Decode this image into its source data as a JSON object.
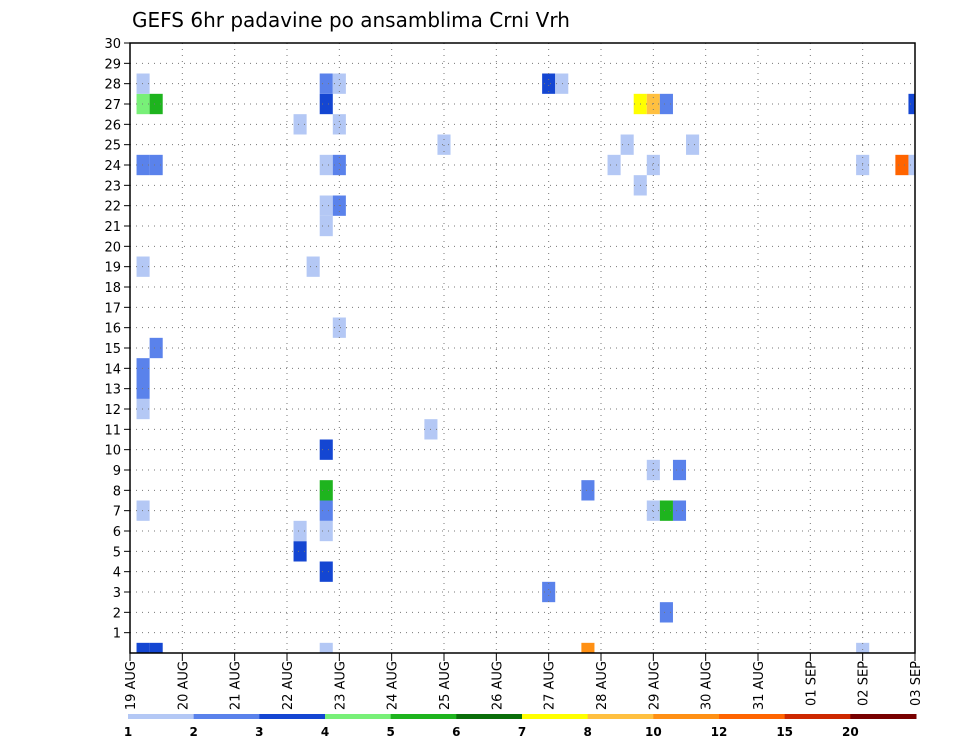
{
  "chart_data": {
    "type": "heatmap",
    "title": "GEFS 6hr padavine po ansamblima Crni Vrh",
    "x_tick_labels": [
      "19 AUG",
      "20 AUG",
      "21 AUG",
      "22 AUG",
      "23 AUG",
      "24 AUG",
      "25 AUG",
      "26 AUG",
      "27 AUG",
      "28 AUG",
      "29 AUG",
      "30 AUG",
      "31 AUG",
      "01 SEP",
      "02 SEP",
      "03 SEP"
    ],
    "y_tick_labels": [
      "1",
      "2",
      "3",
      "4",
      "5",
      "6",
      "7",
      "8",
      "9",
      "10",
      "11",
      "12",
      "13",
      "14",
      "15",
      "16",
      "17",
      "18",
      "19",
      "20",
      "21",
      "22",
      "23",
      "24",
      "25",
      "26",
      "27",
      "28",
      "29",
      "30"
    ],
    "xlim": [
      0,
      15
    ],
    "ylim": [
      0,
      30
    ],
    "grid": true,
    "colorbar": {
      "labels": [
        "1",
        "2",
        "3",
        "4",
        "5",
        "6",
        "7",
        "8",
        "10",
        "12",
        "15",
        "20"
      ],
      "colors": [
        "#b4c8f5",
        "#5a82eb",
        "#1446d2",
        "#78f078",
        "#1eb41e",
        "#0a6e0a",
        "#ffff00",
        "#ffc040",
        "#ff9014",
        "#ff6400",
        "#cd2800",
        "#780000"
      ]
    },
    "cells": [
      {
        "x": 0.25,
        "y": 0,
        "c": 3
      },
      {
        "x": 0.5,
        "y": 0,
        "c": 3
      },
      {
        "x": 3.75,
        "y": 0,
        "c": 1
      },
      {
        "x": 8.75,
        "y": 0,
        "c": 9
      },
      {
        "x": 14,
        "y": 0,
        "c": 1
      },
      {
        "x": 10.25,
        "y": 2,
        "c": 2
      },
      {
        "x": 8,
        "y": 3,
        "c": 2
      },
      {
        "x": 3.75,
        "y": 4,
        "c": 3
      },
      {
        "x": 3.25,
        "y": 5,
        "c": 3
      },
      {
        "x": 3.25,
        "y": 6,
        "c": 1
      },
      {
        "x": 3.75,
        "y": 6,
        "c": 1
      },
      {
        "x": 0.25,
        "y": 7,
        "c": 1
      },
      {
        "x": 3.75,
        "y": 7,
        "c": 2
      },
      {
        "x": 10,
        "y": 7,
        "c": 1
      },
      {
        "x": 10.25,
        "y": 7,
        "c": 5
      },
      {
        "x": 10.5,
        "y": 7,
        "c": 2
      },
      {
        "x": 3.75,
        "y": 8,
        "c": 5
      },
      {
        "x": 8.75,
        "y": 8,
        "c": 2
      },
      {
        "x": 10,
        "y": 9,
        "c": 1
      },
      {
        "x": 10.5,
        "y": 9,
        "c": 2
      },
      {
        "x": 3.75,
        "y": 10,
        "c": 3
      },
      {
        "x": 5.75,
        "y": 11,
        "c": 1
      },
      {
        "x": 0.25,
        "y": 12,
        "c": 1
      },
      {
        "x": 0.25,
        "y": 13,
        "c": 2
      },
      {
        "x": 0.25,
        "y": 14,
        "c": 2
      },
      {
        "x": 0.5,
        "y": 15,
        "c": 2
      },
      {
        "x": 4,
        "y": 16,
        "c": 1
      },
      {
        "x": 0.25,
        "y": 19,
        "c": 1
      },
      {
        "x": 3.5,
        "y": 19,
        "c": 1
      },
      {
        "x": 3.75,
        "y": 21,
        "c": 1
      },
      {
        "x": 3.75,
        "y": 22,
        "c": 1
      },
      {
        "x": 4,
        "y": 22,
        "c": 2
      },
      {
        "x": 9.75,
        "y": 23,
        "c": 1
      },
      {
        "x": 0.25,
        "y": 24,
        "c": 2
      },
      {
        "x": 0.5,
        "y": 24,
        "c": 2
      },
      {
        "x": 3.75,
        "y": 24,
        "c": 1
      },
      {
        "x": 4,
        "y": 24,
        "c": 2
      },
      {
        "x": 9.25,
        "y": 24,
        "c": 1
      },
      {
        "x": 10,
        "y": 24,
        "c": 1
      },
      {
        "x": 14,
        "y": 24,
        "c": 1
      },
      {
        "x": 14.75,
        "y": 24,
        "c": 10
      },
      {
        "x": 15,
        "y": 24,
        "c": 1
      },
      {
        "x": 6,
        "y": 25,
        "c": 1
      },
      {
        "x": 9.5,
        "y": 25,
        "c": 1
      },
      {
        "x": 10.75,
        "y": 25,
        "c": 1
      },
      {
        "x": 3.25,
        "y": 26,
        "c": 1
      },
      {
        "x": 4,
        "y": 26,
        "c": 1
      },
      {
        "x": 0.25,
        "y": 27,
        "c": 4
      },
      {
        "x": 0.5,
        "y": 27,
        "c": 5
      },
      {
        "x": 3.75,
        "y": 27,
        "c": 3
      },
      {
        "x": 9.75,
        "y": 27,
        "c": 7
      },
      {
        "x": 10,
        "y": 27,
        "c": 8
      },
      {
        "x": 10.25,
        "y": 27,
        "c": 2
      },
      {
        "x": 15,
        "y": 27,
        "c": 3
      },
      {
        "x": 0.25,
        "y": 28,
        "c": 1
      },
      {
        "x": 3.75,
        "y": 28,
        "c": 2
      },
      {
        "x": 4,
        "y": 28,
        "c": 1
      },
      {
        "x": 8,
        "y": 28,
        "c": 3
      },
      {
        "x": 8.25,
        "y": 28,
        "c": 1
      }
    ]
  }
}
